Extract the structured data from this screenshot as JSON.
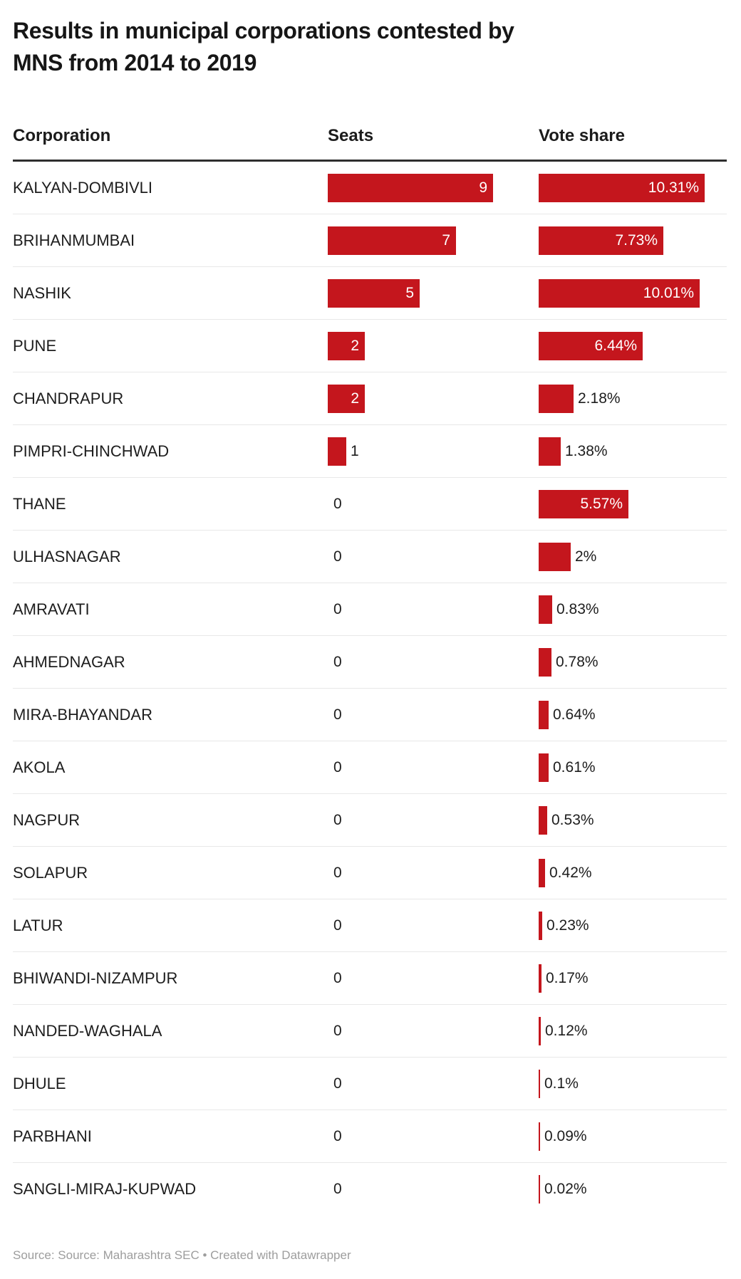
{
  "columns": {
    "corporation": "Corporation",
    "seats": "Seats",
    "vote_share": "Vote share"
  },
  "footer": {
    "text": "Source: Source: Maharashtra SEC • Created with Datawrapper"
  },
  "colors": {
    "bar": "#c4161d",
    "bar_label_inside": "#ffffff",
    "text": "#1d1d1d",
    "row_separator": "#e8e8e8",
    "header_rule": "#2e2e2e",
    "footer_text": "#9d9d9d"
  },
  "chart_data": {
    "type": "bar",
    "orientation": "horizontal",
    "title": "Results in municipal corporations contested by\nMNS from 2014 to 2019",
    "source": "Source: Maharashtra SEC",
    "legend": "none",
    "grid": false,
    "columns": [
      "Corporation",
      "Seats",
      "Vote share"
    ],
    "categories": [
      "KALYAN-DOMBIVLI",
      "BRIHANMUMBAI",
      "NASHIK",
      "PUNE",
      "CHANDRAPUR",
      "PIMPRI-CHINCHWAD",
      "THANE",
      "ULHASNAGAR",
      "AMRAVATI",
      "AHMEDNAGAR",
      "MIRA-BHAYANDAR",
      "AKOLA",
      "NAGPUR",
      "SOLAPUR",
      "LATUR",
      "BHIWANDI-NIZAMPUR",
      "NANDED-WAGHALA",
      "DHULE",
      "PARBHANI",
      "SANGLI-MIRAJ-KUPWAD"
    ],
    "series": [
      {
        "name": "Seats",
        "axis_max": 9,
        "values": [
          9,
          7,
          5,
          2,
          2,
          1,
          0,
          0,
          0,
          0,
          0,
          0,
          0,
          0,
          0,
          0,
          0,
          0,
          0,
          0
        ],
        "labels": [
          "9",
          "7",
          "5",
          "2",
          "2",
          "1",
          "0",
          "0",
          "0",
          "0",
          "0",
          "0",
          "0",
          "0",
          "0",
          "0",
          "0",
          "0",
          "0",
          "0"
        ],
        "label_inside": [
          true,
          true,
          true,
          true,
          true,
          false,
          false,
          false,
          false,
          false,
          false,
          false,
          false,
          false,
          false,
          false,
          false,
          false,
          false,
          false
        ]
      },
      {
        "name": "Vote share",
        "axis_max": 10.31,
        "values": [
          10.31,
          7.73,
          10.01,
          6.44,
          2.18,
          1.38,
          5.57,
          2,
          0.83,
          0.78,
          0.64,
          0.61,
          0.53,
          0.42,
          0.23,
          0.17,
          0.12,
          0.1,
          0.09,
          0.02
        ],
        "labels": [
          "10.31%",
          "7.73%",
          "10.01%",
          "6.44%",
          "2.18%",
          "1.38%",
          "5.57%",
          "2%",
          "0.83%",
          "0.78%",
          "0.64%",
          "0.61%",
          "0.53%",
          "0.42%",
          "0.23%",
          "0.17%",
          "0.12%",
          "0.1%",
          "0.09%",
          "0.02%"
        ],
        "label_inside": [
          true,
          true,
          true,
          true,
          false,
          false,
          true,
          false,
          false,
          false,
          false,
          false,
          false,
          false,
          false,
          false,
          false,
          false,
          false,
          false
        ]
      }
    ]
  }
}
